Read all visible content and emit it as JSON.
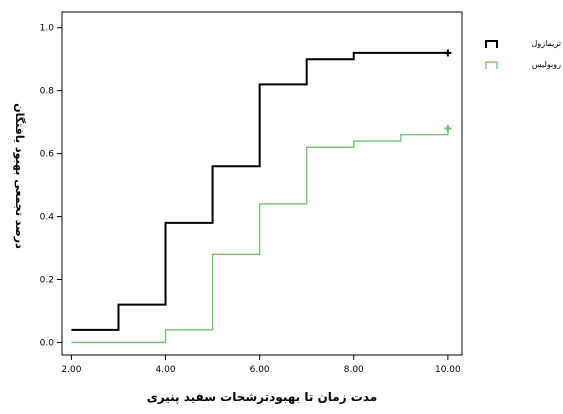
{
  "chart_data": {
    "type": "line",
    "step": true,
    "xlabel": "مدت زمان تا بهبودترشحات سفید پنیری",
    "ylabel": "درصد تجمعی بهبود یافتگان",
    "xlim": [
      1.8,
      10.3
    ],
    "ylim": [
      -0.04,
      1.05
    ],
    "xticks": [
      "2.00",
      "4.00",
      "6.00",
      "8.00",
      "10.00"
    ],
    "yticks": [
      "0.0",
      "0.2",
      "0.4",
      "0.6",
      "0.8",
      "1.0"
    ],
    "grid": false,
    "legend_position": "right",
    "series": [
      {
        "name": "تریمازول",
        "color": "#000000",
        "x": [
          2,
          3,
          4,
          5,
          6,
          7,
          8,
          10
        ],
        "y": [
          0.04,
          0.12,
          0.38,
          0.56,
          0.82,
          0.9,
          0.92,
          0.92
        ],
        "censor_x": [
          10
        ],
        "censor_y": [
          0.92
        ]
      },
      {
        "name": "روبولیس",
        "color": "#6cc36c",
        "x": [
          2,
          4,
          5,
          6,
          7,
          8,
          9,
          10
        ],
        "y": [
          0.0,
          0.04,
          0.28,
          0.44,
          0.62,
          0.64,
          0.66,
          0.68
        ],
        "censor_x": [
          10
        ],
        "censor_y": [
          0.68
        ]
      }
    ]
  }
}
